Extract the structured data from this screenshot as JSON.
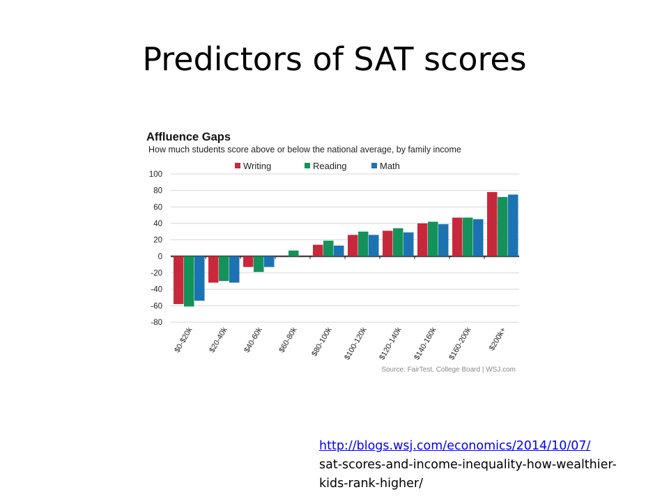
{
  "slide": {
    "title": "Predictors of SAT scores",
    "link_line1": "http://blogs.wsj.com/economics/2014/10/07/",
    "link_line2": "sat-scores-and-income-inequality-how-wealthier-",
    "link_line3": "kids-rank-higher/"
  },
  "chart_data": {
    "type": "bar",
    "title": "Affluence Gaps",
    "subtitle": "How much students score above or below the national average, by family income",
    "source": "Source: FairTest, College Board  |  WSJ.com",
    "categories": [
      "$0-$20k",
      "$20-40k",
      "$40-60k",
      "$60-80k",
      "$80-100k",
      "$100-120k",
      "$120-140k",
      "$140-160k",
      "$160-200k",
      "$200k+"
    ],
    "series": [
      {
        "name": "Writing",
        "color": "#c8283c",
        "values": [
          -58,
          -32,
          -13,
          0,
          14,
          26,
          31,
          40,
          47,
          78
        ]
      },
      {
        "name": "Reading",
        "color": "#13925a",
        "values": [
          -61,
          -30,
          -19,
          7,
          19,
          30,
          34,
          42,
          47,
          72
        ]
      },
      {
        "name": "Math",
        "color": "#1b73b3",
        "values": [
          -54,
          -32,
          -13,
          0,
          13,
          26,
          29,
          39,
          45,
          75
        ]
      }
    ],
    "ylim": [
      -80,
      100
    ],
    "yticks": [
      100,
      80,
      60,
      40,
      20,
      0,
      -20,
      -40,
      -60,
      -80
    ],
    "grid": true,
    "legend_position": "top-center"
  }
}
